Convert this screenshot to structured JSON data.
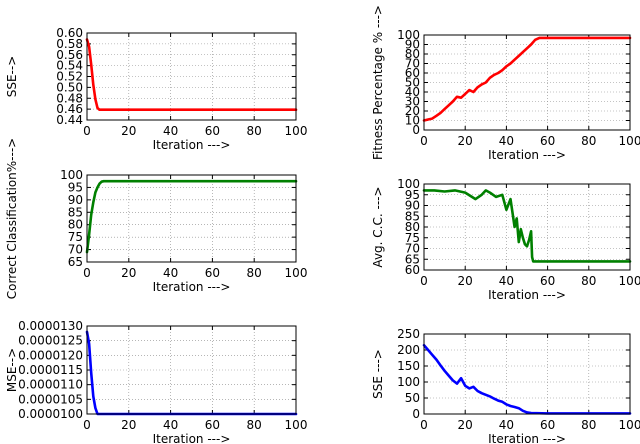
{
  "chart_data": [
    {
      "type": "line",
      "title": "",
      "xlabel": "Iteration --->",
      "ylabel": "SSE-->",
      "xlim": [
        0,
        100
      ],
      "ylim": [
        0.44,
        0.6
      ],
      "xticks": [
        "0",
        "20",
        "40",
        "60",
        "80",
        "100"
      ],
      "yticks": [
        "0.44",
        "0.46",
        "0.48",
        "0.50",
        "0.52",
        "0.54",
        "0.56",
        "0.58",
        "0.60"
      ],
      "grid": true,
      "series": [
        {
          "color": "#ff0000",
          "x": [
            0,
            1,
            2,
            3,
            4,
            5,
            6,
            8,
            100
          ],
          "y": [
            0.588,
            0.575,
            0.542,
            0.505,
            0.478,
            0.462,
            0.459,
            0.459,
            0.459
          ]
        }
      ]
    },
    {
      "type": "line",
      "title": "",
      "xlabel": "Iteration --->",
      "ylabel": "Fitness Percentage % --->",
      "xlim": [
        0,
        100
      ],
      "ylim": [
        0,
        100
      ],
      "xticks": [
        "0",
        "20",
        "40",
        "60",
        "80",
        "100"
      ],
      "yticks": [
        "0",
        "10",
        "20",
        "30",
        "40",
        "50",
        "60",
        "70",
        "80",
        "90",
        "100"
      ],
      "grid": true,
      "series": [
        {
          "color": "#ff0000",
          "x": [
            0,
            2,
            4,
            6,
            8,
            10,
            12,
            14,
            16,
            18,
            20,
            22,
            24,
            26,
            28,
            30,
            32,
            34,
            36,
            38,
            40,
            42,
            44,
            46,
            48,
            50,
            52,
            54,
            56,
            60,
            70,
            80,
            90,
            100
          ],
          "y": [
            10,
            11,
            12,
            15,
            18,
            22,
            26,
            30,
            35,
            34,
            38,
            42,
            40,
            45,
            48,
            50,
            55,
            58,
            60,
            63,
            67,
            70,
            74,
            78,
            82,
            86,
            90,
            95,
            97,
            97,
            97,
            97,
            97,
            97
          ]
        }
      ]
    },
    {
      "type": "line",
      "title": "",
      "xlabel": "Iteration --->",
      "ylabel": "Correct Classification%--->",
      "xlim": [
        0,
        100
      ],
      "ylim": [
        65,
        100
      ],
      "xticks": [
        "0",
        "20",
        "40",
        "60",
        "80",
        "100"
      ],
      "yticks": [
        "65",
        "70",
        "75",
        "80",
        "85",
        "90",
        "95",
        "100"
      ],
      "grid": true,
      "series": [
        {
          "color": "#008000",
          "x": [
            0,
            1,
            2,
            3,
            4,
            5,
            6,
            7,
            8,
            10,
            100
          ],
          "y": [
            69,
            76,
            84,
            89,
            93,
            95,
            96.5,
            97.3,
            97.5,
            97.5,
            97.5
          ]
        }
      ]
    },
    {
      "type": "line",
      "title": "",
      "xlabel": "Iteration --->",
      "ylabel": "Avg. C.C. --->",
      "xlim": [
        0,
        100
      ],
      "ylim": [
        60,
        100
      ],
      "xticks": [
        "0",
        "20",
        "40",
        "60",
        "80",
        "100"
      ],
      "yticks": [
        "60",
        "65",
        "70",
        "75",
        "80",
        "85",
        "90",
        "95",
        "100"
      ],
      "grid": true,
      "series": [
        {
          "color": "#008000",
          "x": [
            0,
            5,
            10,
            15,
            20,
            25,
            28,
            30,
            32,
            35,
            38,
            40,
            42,
            44,
            45,
            46,
            47,
            48,
            49,
            50,
            51,
            52,
            52.5,
            53,
            60,
            80,
            100
          ],
          "y": [
            97,
            97,
            96.5,
            97,
            96,
            93,
            95,
            97,
            96,
            94,
            95,
            88,
            93,
            80,
            84,
            73,
            79,
            75,
            72,
            71,
            74,
            78,
            66,
            64,
            64,
            64,
            64
          ]
        }
      ]
    },
    {
      "type": "line",
      "title": "",
      "xlabel": "Iteration --->",
      "ylabel": "MSE-->",
      "xlim": [
        0,
        100
      ],
      "ylim": [
        1e-05,
        1.3e-05
      ],
      "xticks": [
        "0",
        "20",
        "40",
        "60",
        "80",
        "100"
      ],
      "yticks": [
        "0.0000100",
        "0.0000105",
        "0.0000110",
        "0.0000115",
        "0.0000120",
        "0.0000125",
        "0.0000130"
      ],
      "grid": true,
      "series": [
        {
          "color": "#0000ff",
          "x": [
            0,
            1,
            2,
            3,
            4,
            5,
            6,
            8,
            100
          ],
          "y": [
            1.28e-05,
            1.24e-05,
            1.14e-05,
            1.06e-05,
            1.02e-05,
            1e-05,
            1e-05,
            1e-05,
            1e-05
          ]
        }
      ]
    },
    {
      "type": "line",
      "title": "",
      "xlabel": "Iteration --->",
      "ylabel": "SSE --->",
      "xlim": [
        0,
        100
      ],
      "ylim": [
        0,
        250
      ],
      "xticks": [
        "0",
        "20",
        "40",
        "60",
        "80",
        "100"
      ],
      "yticks": [
        "0",
        "50",
        "100",
        "150",
        "200",
        "250"
      ],
      "grid": true,
      "series": [
        {
          "color": "#0000ff",
          "x": [
            0,
            2,
            4,
            6,
            8,
            10,
            12,
            14,
            16,
            18,
            20,
            22,
            24,
            26,
            28,
            30,
            32,
            34,
            36,
            38,
            40,
            42,
            44,
            46,
            48,
            50,
            52,
            60,
            80,
            100
          ],
          "y": [
            215,
            200,
            185,
            170,
            152,
            135,
            120,
            105,
            95,
            112,
            88,
            80,
            85,
            72,
            65,
            60,
            55,
            48,
            42,
            38,
            30,
            25,
            22,
            18,
            10,
            5,
            3,
            2,
            2,
            2
          ]
        }
      ]
    }
  ]
}
